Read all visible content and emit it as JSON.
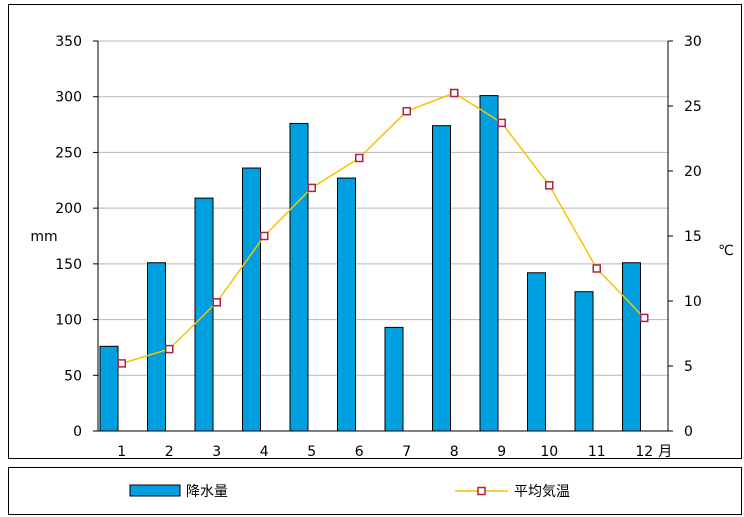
{
  "chart_data": {
    "type": "bar+line",
    "categories": [
      "1",
      "2",
      "3",
      "4",
      "5",
      "6",
      "7",
      "8",
      "9",
      "10",
      "11",
      "12"
    ],
    "x_suffix": "月",
    "series": [
      {
        "name": "降水量",
        "type": "bar",
        "axis": "left",
        "color": "#00a0e0",
        "values": [
          76,
          151,
          209,
          236,
          276,
          227,
          93,
          274,
          301,
          142,
          125,
          151
        ]
      },
      {
        "name": "平均気温",
        "type": "line",
        "axis": "right",
        "color": "#f5c400",
        "marker_color": "#b02040",
        "values": [
          5.2,
          6.3,
          9.9,
          15.0,
          18.7,
          21.0,
          24.6,
          26.0,
          23.7,
          18.9,
          12.5,
          8.7
        ]
      }
    ],
    "ylabel_left": "mm",
    "ylabel_right": "℃",
    "ylim_left": [
      0,
      350
    ],
    "yticks_left": [
      "0",
      "50",
      "100",
      "150",
      "200",
      "250",
      "300",
      "350"
    ],
    "ylim_right": [
      0,
      30
    ],
    "yticks_right": [
      "0",
      "5",
      "10",
      "15",
      "20",
      "25",
      "30"
    ],
    "grid": "horizontal"
  }
}
